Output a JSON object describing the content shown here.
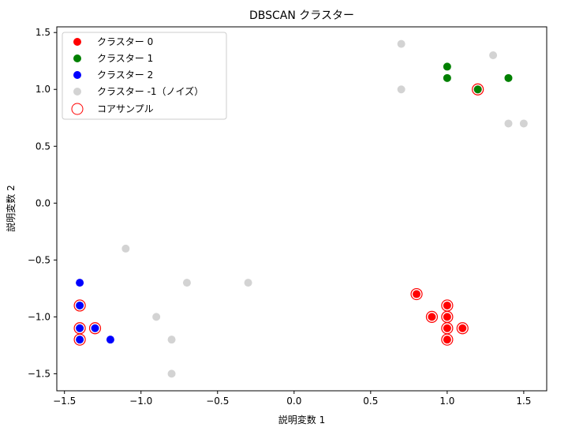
{
  "chart_data": {
    "type": "scatter",
    "title": "DBSCAN クラスター",
    "xlabel": "説明変数 1",
    "ylabel": "説明変数 2",
    "xlim": [
      -1.55,
      1.65
    ],
    "ylim": [
      -1.65,
      1.55
    ],
    "xticks": [
      -1.5,
      -1.0,
      -0.5,
      0.0,
      0.5,
      1.0,
      1.5
    ],
    "xtick_labels": [
      "−1.5",
      "−1.0",
      "−0.5",
      "0.0",
      "0.5",
      "1.0",
      "1.5"
    ],
    "yticks": [
      -1.5,
      -1.0,
      -0.5,
      0.0,
      0.5,
      1.0,
      1.5
    ],
    "ytick_labels": [
      "−1.5",
      "−1.0",
      "−0.5",
      "0.0",
      "0.5",
      "1.0",
      "1.5"
    ],
    "grid": false,
    "legend_position": "top-left",
    "series": [
      {
        "name": "クラスター 0",
        "color": "#ff0000",
        "points": [
          [
            0.8,
            -0.8
          ],
          [
            0.9,
            -1.0
          ],
          [
            1.0,
            -0.9
          ],
          [
            1.0,
            -1.0
          ],
          [
            1.0,
            -1.1
          ],
          [
            1.0,
            -1.2
          ],
          [
            1.1,
            -1.1
          ],
          [
            1.2,
            1.0
          ]
        ]
      },
      {
        "name": "クラスター 1",
        "color": "#008000",
        "points": [
          [
            1.0,
            1.2
          ],
          [
            1.0,
            1.1
          ],
          [
            1.2,
            1.0
          ],
          [
            1.4,
            1.1
          ]
        ]
      },
      {
        "name": "クラスター 2",
        "color": "#0000ff",
        "points": [
          [
            -1.4,
            -0.7
          ],
          [
            -1.4,
            -0.9
          ],
          [
            -1.4,
            -1.1
          ],
          [
            -1.4,
            -1.2
          ],
          [
            -1.3,
            -1.1
          ],
          [
            -1.2,
            -1.2
          ]
        ]
      },
      {
        "name": "クラスター -1（ノイズ）",
        "color": "#d3d3d3",
        "points": [
          [
            0.7,
            1.4
          ],
          [
            0.7,
            1.0
          ],
          [
            1.3,
            1.3
          ],
          [
            1.4,
            0.7
          ],
          [
            1.5,
            0.7
          ],
          [
            -1.1,
            -0.4
          ],
          [
            -0.7,
            -0.7
          ],
          [
            -0.3,
            -0.7
          ],
          [
            -0.9,
            -1.0
          ],
          [
            -0.8,
            -1.2
          ],
          [
            -0.8,
            -1.5
          ]
        ]
      }
    ],
    "core_samples": {
      "name": "コアサンプル",
      "edge_color": "#ff0000",
      "points": [
        [
          1.2,
          1.0
        ],
        [
          0.8,
          -0.8
        ],
        [
          0.9,
          -1.0
        ],
        [
          1.0,
          -0.9
        ],
        [
          1.0,
          -1.0
        ],
        [
          1.0,
          -1.1
        ],
        [
          1.0,
          -1.2
        ],
        [
          1.1,
          -1.1
        ],
        [
          -1.4,
          -0.9
        ],
        [
          -1.4,
          -1.1
        ],
        [
          -1.4,
          -1.2
        ],
        [
          -1.3,
          -1.1
        ]
      ]
    },
    "legend": [
      "クラスター 0",
      "クラスター 1",
      "クラスター 2",
      "クラスター -1（ノイズ）",
      "コアサンプル"
    ]
  }
}
